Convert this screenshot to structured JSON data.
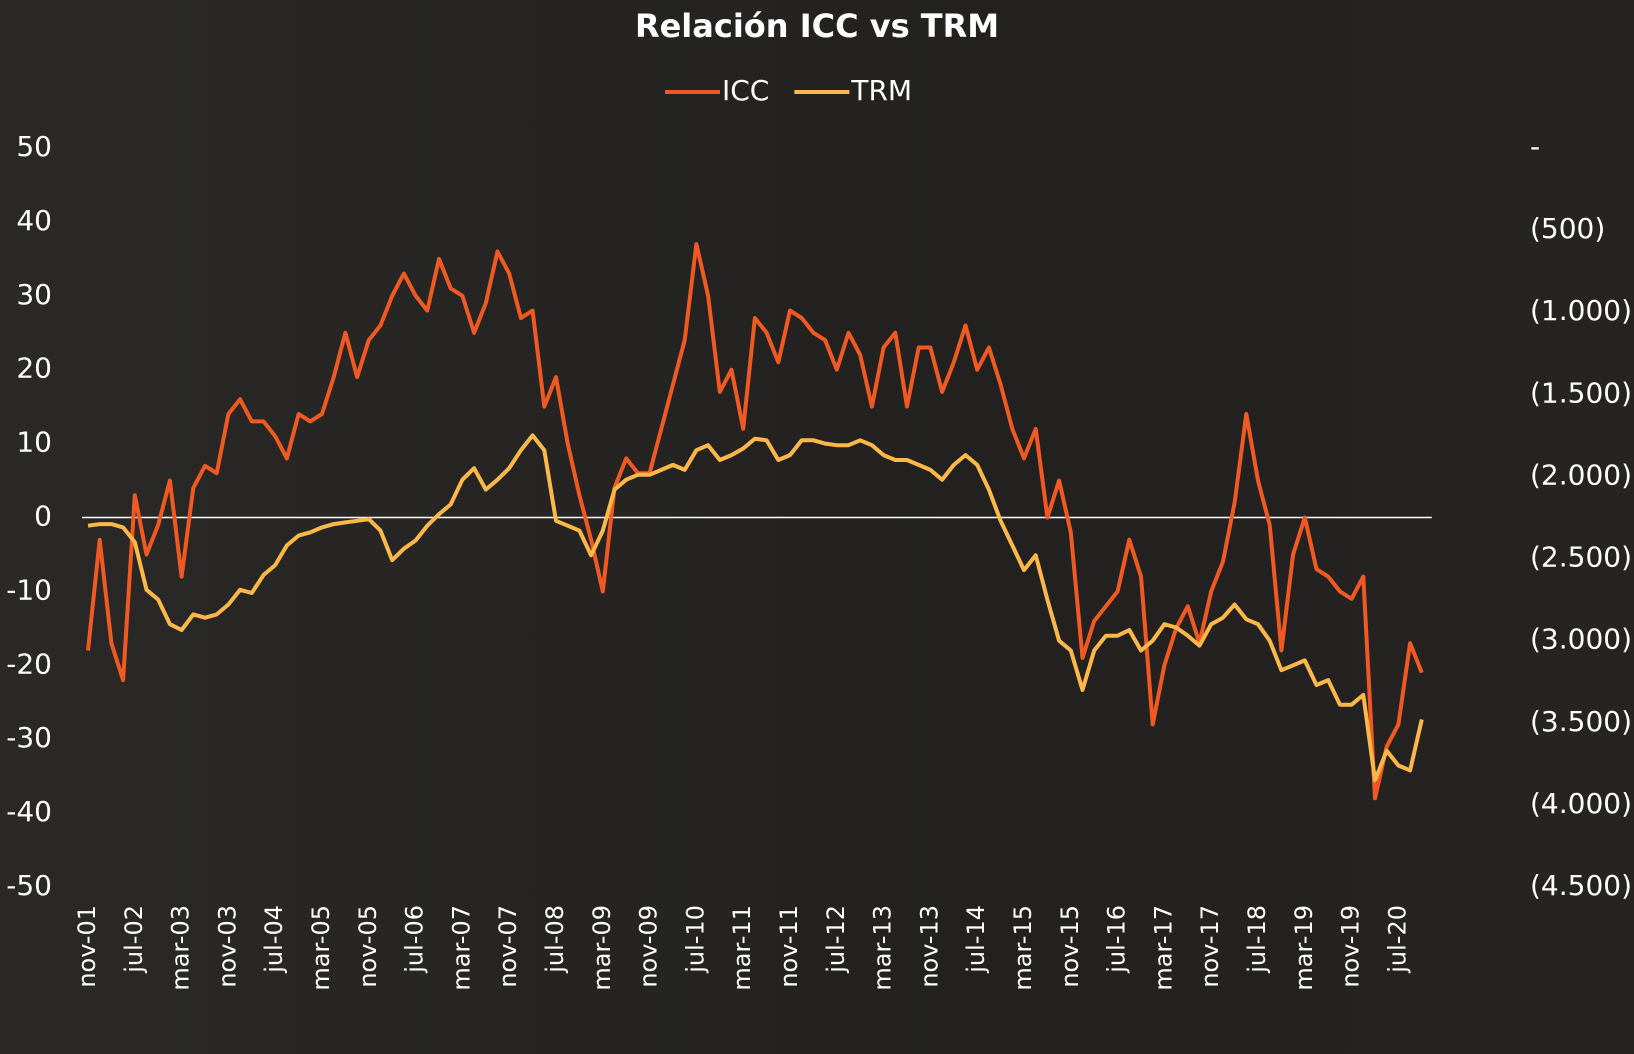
{
  "chart_data": {
    "type": "line",
    "title": "Relación ICC vs TRM",
    "categories": [
      "nov-01",
      null,
      null,
      null,
      "jul-02",
      null,
      null,
      null,
      "mar-03",
      null,
      null,
      null,
      "nov-03",
      null,
      null,
      null,
      "jul-04",
      null,
      null,
      null,
      "mar-05",
      null,
      null,
      null,
      "nov-05",
      null,
      null,
      null,
      "jul-06",
      null,
      null,
      null,
      "mar-07",
      null,
      null,
      null,
      "nov-07",
      null,
      null,
      null,
      "jul-08",
      null,
      null,
      null,
      "mar-09",
      null,
      null,
      null,
      "nov-09",
      null,
      null,
      null,
      "jul-10",
      null,
      null,
      null,
      "mar-11",
      null,
      null,
      null,
      "nov-11",
      null,
      null,
      null,
      "jul-12",
      null,
      null,
      null,
      "mar-13",
      null,
      null,
      null,
      "nov-13",
      null,
      null,
      null,
      "jul-14",
      null,
      null,
      null,
      "mar-15",
      null,
      null,
      null,
      "nov-15",
      null,
      null,
      null,
      "jul-16",
      null,
      null,
      null,
      "mar-17",
      null,
      null,
      null,
      "nov-17",
      null,
      null,
      null,
      "jul-18",
      null,
      null,
      null,
      "mar-19",
      null,
      null,
      null,
      "nov-19",
      null,
      null,
      null,
      "jul-20",
      null,
      null
    ],
    "series": [
      {
        "name": "ICC",
        "color": "#f05a22",
        "values": [
          -18,
          -3,
          -17,
          -22,
          3,
          -5,
          -1,
          5,
          -8,
          4,
          7,
          6,
          14,
          16,
          13,
          13,
          11,
          8,
          14,
          13,
          14,
          19,
          25,
          19,
          24,
          26,
          30,
          33,
          30,
          28,
          35,
          31,
          30,
          25,
          29,
          36,
          33,
          27,
          28,
          15,
          19,
          10,
          3,
          -3,
          -10,
          4,
          8,
          6,
          6,
          12,
          18,
          24,
          37,
          30,
          17,
          20,
          12,
          27,
          25,
          21,
          28,
          27,
          25,
          24,
          20,
          25,
          22,
          15,
          23,
          25,
          15,
          23,
          23,
          17,
          21,
          26,
          20,
          23,
          18,
          12,
          8,
          12,
          0,
          5,
          -2,
          -19,
          -14,
          -12,
          -10,
          -3,
          -8,
          -28,
          -20,
          -15,
          -12,
          -17,
          -10,
          -6,
          2,
          14,
          5,
          -1,
          -18,
          -5,
          0,
          -7,
          -8,
          -10,
          -11,
          -8,
          -38,
          -31,
          -28,
          -17,
          -21
        ]
      },
      {
        "name": "TRM",
        "color": "#fdb849",
        "axis": "y2",
        "values": [
          -2300,
          -2290,
          -2290,
          -2310,
          -2400,
          -2690,
          -2750,
          -2900,
          -2935,
          -2840,
          -2860,
          -2840,
          -2780,
          -2690,
          -2710,
          -2600,
          -2540,
          -2420,
          -2360,
          -2340,
          -2310,
          -2290,
          -2280,
          -2270,
          -2260,
          -2330,
          -2510,
          -2440,
          -2390,
          -2300,
          -2230,
          -2170,
          -2020,
          -1950,
          -2080,
          -2020,
          -1950,
          -1840,
          -1750,
          -1840,
          -2270,
          -2300,
          -2330,
          -2480,
          -2330,
          -2080,
          -2020,
          -1990,
          -1990,
          -1960,
          -1930,
          -1960,
          -1840,
          -1810,
          -1900,
          -1870,
          -1830,
          -1770,
          -1780,
          -1900,
          -1870,
          -1780,
          -1780,
          -1800,
          -1810,
          -1810,
          -1780,
          -1810,
          -1870,
          -1900,
          -1900,
          -1930,
          -1960,
          -2020,
          -1930,
          -1870,
          -1930,
          -2080,
          -2270,
          -2420,
          -2570,
          -2480,
          -2750,
          -3000,
          -3060,
          -3300,
          -3060,
          -2970,
          -2970,
          -2935,
          -3060,
          -3000,
          -2900,
          -2920,
          -2970,
          -3030,
          -2900,
          -2860,
          -2780,
          -2870,
          -2900,
          -3000,
          -3180,
          -3150,
          -3120,
          -3270,
          -3240,
          -3390,
          -3390,
          -3330,
          -3850,
          -3670,
          -3760,
          -3790,
          -3480
        ]
      }
    ],
    "ylim": [
      -50,
      50
    ],
    "yticks": [
      50,
      40,
      30,
      20,
      10,
      0,
      -10,
      -20,
      -30,
      -40,
      -50
    ],
    "y2lim": [
      -4500,
      0
    ],
    "y2ticks": [
      {
        "value": 0,
        "label": "-"
      },
      {
        "value": -500,
        "label": "(500)"
      },
      {
        "value": -1000,
        "label": "(1.000)"
      },
      {
        "value": -1500,
        "label": "(1.500)"
      },
      {
        "value": -2000,
        "label": "(2.000)"
      },
      {
        "value": -2500,
        "label": "(2.500)"
      },
      {
        "value": -3000,
        "label": "(3.000)"
      },
      {
        "value": -3500,
        "label": "(3.500)"
      },
      {
        "value": -4000,
        "label": "(4.000)"
      },
      {
        "value": -4500,
        "label": "(4.500)"
      }
    ],
    "legend": "top"
  }
}
